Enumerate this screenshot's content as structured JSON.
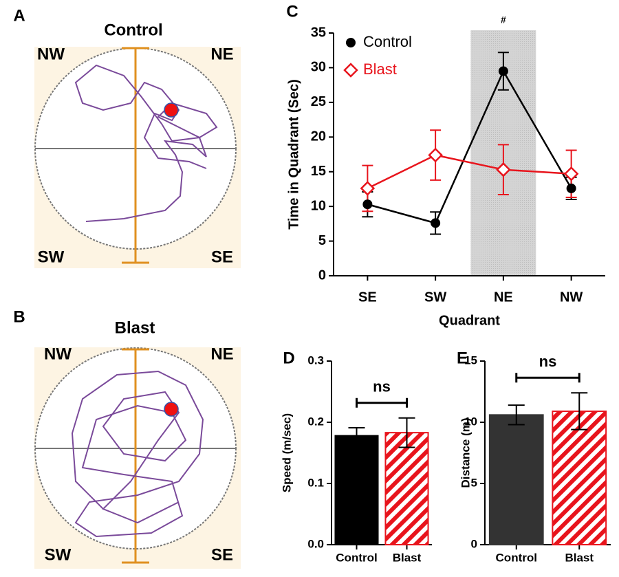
{
  "panels": [
    {
      "label": "A",
      "title": "Control",
      "quadrants": [
        "NW",
        "NE",
        "SW",
        "SE"
      ]
    },
    {
      "label": "B",
      "title": "Blast",
      "quadrants": [
        "NW",
        "NE",
        "SW",
        "SE"
      ]
    }
  ],
  "chart_data": [
    {
      "type": "line",
      "panel_label": "C",
      "y_label": "Time in Quadrant (Sec)",
      "x_label": "Quadrant",
      "categories": [
        "SE",
        "SW",
        "NE",
        "NW"
      ],
      "series": [
        {
          "name": "Control",
          "color": "#000000",
          "marker": "circle",
          "values": [
            10.3,
            7.6,
            29.5,
            12.6
          ],
          "errors": [
            1.8,
            1.6,
            2.7,
            1.6
          ]
        },
        {
          "name": "Blast",
          "color": "#e8141c",
          "marker": "diamond",
          "values": [
            12.6,
            17.4,
            15.3,
            14.7
          ],
          "errors": [
            3.3,
            3.6,
            3.6,
            3.4
          ]
        }
      ],
      "highlight_category": 2,
      "annotation": "#",
      "ylim": [
        0,
        35
      ],
      "yticks": [
        0,
        5,
        10,
        15,
        20,
        25,
        30,
        35
      ]
    },
    {
      "type": "bar",
      "panel_label": "D",
      "y_label": "Speed (m/sec)",
      "categories": [
        "Control",
        "Blast"
      ],
      "values": [
        0.178,
        0.183
      ],
      "errors": [
        0.013,
        0.024
      ],
      "colors": [
        "#000000",
        "#e8141c"
      ],
      "hatch": [
        false,
        true
      ],
      "annotation": "ns",
      "ylim": [
        0,
        0.3
      ],
      "yticks": [
        {
          "value": 0,
          "label": "0.0"
        },
        0.1,
        0.2,
        0.3
      ]
    },
    {
      "type": "bar",
      "panel_label": "E",
      "y_label": "Distance (m)",
      "categories": [
        "Control",
        "Blast"
      ],
      "values": [
        10.6,
        10.9
      ],
      "errors": [
        0.8,
        1.5
      ],
      "colors": [
        "#333333",
        "#e8141c"
      ],
      "hatch": [
        false,
        true
      ],
      "annotation": "ns",
      "ylim": [
        0,
        15
      ],
      "yticks": [
        0,
        5,
        10,
        15
      ]
    }
  ]
}
